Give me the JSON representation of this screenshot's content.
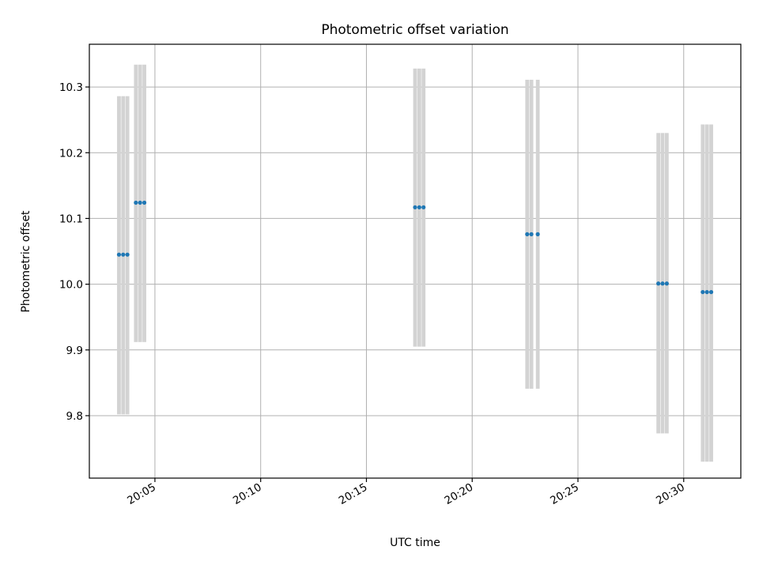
{
  "chart_data": {
    "type": "scatter",
    "title": "Photometric offset variation",
    "xlabel": "UTC time",
    "ylabel": "Photometric offset",
    "x_unit": "minutes after 20:00 UTC",
    "xlim": [
      1.9,
      32.7
    ],
    "ylim": [
      9.705,
      10.365
    ],
    "x_ticks": [
      5,
      10,
      15,
      20,
      25,
      30
    ],
    "x_tick_labels": [
      "20:05",
      "20:10",
      "20:15",
      "20:20",
      "20:25",
      "20:30"
    ],
    "y_ticks": [
      9.8,
      9.9,
      10.0,
      10.1,
      10.2,
      10.3
    ],
    "y_tick_labels": [
      "9.8",
      "9.9",
      "10.0",
      "10.1",
      "10.2",
      "10.3"
    ],
    "grid": true,
    "colors": {
      "points": "#1f77b4",
      "error_bars": "#d3d3d3",
      "grid": "#b0b0b0"
    },
    "groups": [
      {
        "x": [
          3.3,
          3.5,
          3.7
        ],
        "y": 10.045,
        "err_low": 9.802,
        "err_high": 10.286
      },
      {
        "x": [
          4.1,
          4.3,
          4.5
        ],
        "y": 10.124,
        "err_low": 9.912,
        "err_high": 10.334
      },
      {
        "x": [
          17.3,
          17.5,
          17.7
        ],
        "y": 10.117,
        "err_low": 9.905,
        "err_high": 10.328
      },
      {
        "x": [
          22.6,
          22.8,
          23.1
        ],
        "y": 10.076,
        "err_low": 9.841,
        "err_high": 10.311
      },
      {
        "x": [
          28.8,
          29.0,
          29.2
        ],
        "y": 10.001,
        "err_low": 9.773,
        "err_high": 10.23
      },
      {
        "x": [
          30.9,
          31.1,
          31.3
        ],
        "y": 9.988,
        "err_low": 9.73,
        "err_high": 10.243
      }
    ]
  }
}
